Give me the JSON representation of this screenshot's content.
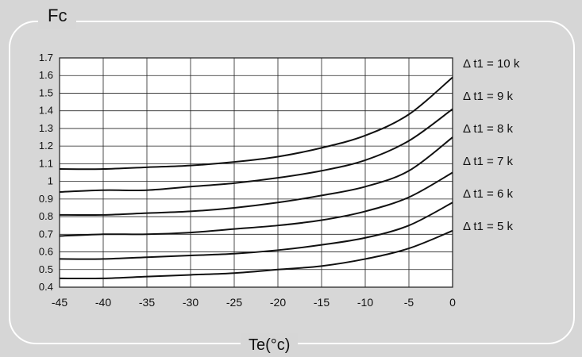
{
  "chart_data": {
    "type": "line",
    "ylabel": "Fc",
    "xlabel": "Te(°c)",
    "xlim": [
      -45,
      0
    ],
    "ylim": [
      0.4,
      1.7
    ],
    "xticks": [
      -45,
      -40,
      -35,
      -30,
      -25,
      -20,
      -15,
      -10,
      -5,
      0
    ],
    "yticks": [
      0.4,
      0.5,
      0.6,
      0.7,
      0.8,
      0.9,
      1,
      1.1,
      1.2,
      1.3,
      1.4,
      1.5,
      1.6,
      1.7
    ],
    "grid": true,
    "series": [
      {
        "name": "Δ t1 = 10 k",
        "x": [
          -45,
          -40,
          -35,
          -30,
          -25,
          -20,
          -15,
          -10,
          -5,
          0
        ],
        "values": [
          1.07,
          1.07,
          1.08,
          1.09,
          1.11,
          1.14,
          1.19,
          1.26,
          1.38,
          1.59
        ]
      },
      {
        "name": "Δ t1 = 9 k",
        "x": [
          -45,
          -40,
          -35,
          -30,
          -25,
          -20,
          -15,
          -10,
          -5,
          0
        ],
        "values": [
          0.94,
          0.95,
          0.95,
          0.97,
          0.99,
          1.02,
          1.06,
          1.12,
          1.23,
          1.41
        ]
      },
      {
        "name": "Δ t1 = 8 k",
        "x": [
          -45,
          -40,
          -35,
          -30,
          -25,
          -20,
          -15,
          -10,
          -5,
          0
        ],
        "values": [
          0.81,
          0.81,
          0.82,
          0.83,
          0.85,
          0.88,
          0.92,
          0.97,
          1.06,
          1.25
        ]
      },
      {
        "name": "Δ t1 = 7 k",
        "x": [
          -45,
          -40,
          -35,
          -30,
          -25,
          -20,
          -15,
          -10,
          -5,
          0
        ],
        "values": [
          0.69,
          0.7,
          0.7,
          0.71,
          0.73,
          0.75,
          0.78,
          0.83,
          0.91,
          1.05
        ]
      },
      {
        "name": "Δ t1 = 6 k",
        "x": [
          -45,
          -40,
          -35,
          -30,
          -25,
          -20,
          -15,
          -10,
          -5,
          0
        ],
        "values": [
          0.56,
          0.56,
          0.57,
          0.58,
          0.59,
          0.61,
          0.64,
          0.68,
          0.75,
          0.88
        ]
      },
      {
        "name": "Δ t1 = 5 k",
        "x": [
          -45,
          -40,
          -35,
          -30,
          -25,
          -20,
          -15,
          -10,
          -5,
          0
        ],
        "values": [
          0.45,
          0.45,
          0.46,
          0.47,
          0.48,
          0.5,
          0.52,
          0.56,
          0.62,
          0.72
        ]
      }
    ]
  }
}
